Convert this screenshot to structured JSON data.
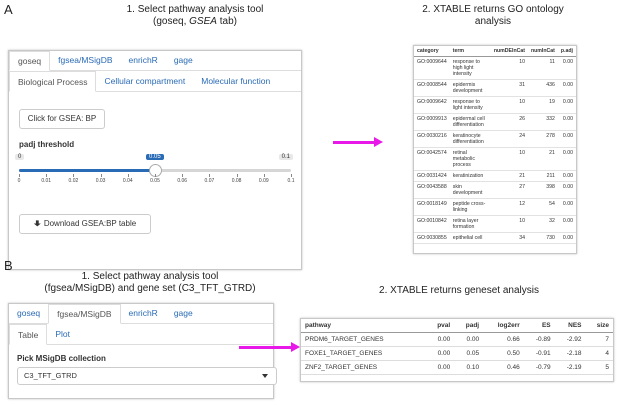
{
  "panel_a": {
    "letter": "A",
    "step1_line1": "1.  Select pathway analysis tool",
    "step1_line2_pre": "(goseq, ",
    "step1_line2_italic": "GSEA",
    "step1_line2_post": " tab)",
    "step2_line1": "2. XTABLE returns GO ontology",
    "step2_line2": "analysis",
    "tabs": [
      "goseq",
      "fgsea/MSigDB",
      "enrichR",
      "gage"
    ],
    "subtabs": [
      "Biological Process",
      "Cellular compartment",
      "Molecular function"
    ],
    "gsea_button": "Click for GSEA: BP",
    "slider_label": "padj threshold",
    "slider_min": "0",
    "slider_max": "0.1",
    "slider_value": "0.05",
    "slider_level": 0.5,
    "ticks": [
      "0",
      "0.01",
      "0.02",
      "0.03",
      "0.04",
      "0.05",
      "0.06",
      "0.07",
      "0.08",
      "0.09",
      "0.1"
    ],
    "download_button": "Download GSEA:BP table",
    "go_table": {
      "headers": [
        "category",
        "term",
        "numDEInCat",
        "numInCat",
        "p.adj"
      ],
      "rows": [
        [
          "GO:0009644",
          "response to high light intensity",
          "10",
          "11",
          "0.00"
        ],
        [
          "GO:0008544",
          "epidermis development",
          "31",
          "436",
          "0.00"
        ],
        [
          "GO:0009642",
          "response to light intensity",
          "10",
          "19",
          "0.00"
        ],
        [
          "GO:0009913",
          "epidermal cell differentiation",
          "26",
          "332",
          "0.00"
        ],
        [
          "GO:0030216",
          "keratinocyte differentiation",
          "24",
          "278",
          "0.00"
        ],
        [
          "GO:0042574",
          "retinal metabolic process",
          "10",
          "21",
          "0.00"
        ],
        [
          "GO:0031424",
          "keratinization",
          "21",
          "211",
          "0.00"
        ],
        [
          "GO:0043588",
          "skin development",
          "27",
          "398",
          "0.00"
        ],
        [
          "GO:0018149",
          "peptide cross-linking",
          "12",
          "54",
          "0.00"
        ],
        [
          "GO:0010842",
          "retina layer formation",
          "10",
          "32",
          "0.00"
        ],
        [
          "GO:0030855",
          "epithelial cell",
          "34",
          "730",
          "0.00"
        ]
      ]
    }
  },
  "panel_b": {
    "letter": "B",
    "step1_line1": "1.  Select pathway analysis tool",
    "step1_line2": "(fgsea/MSigDB) and gene set (C3_TFT_GTRD)",
    "step2": "2. XTABLE returns geneset analysis",
    "tabs": [
      "goseq",
      "fgsea/MSigDB",
      "enrichR",
      "gage"
    ],
    "subtabs": [
      "Table",
      "Plot"
    ],
    "select_label": "Pick MSigDB collection",
    "select_value": "C3_TFT_GTRD",
    "gs_table": {
      "headers": [
        "pathway",
        "pval",
        "padj",
        "log2err",
        "ES",
        "NES",
        "size"
      ],
      "rows": [
        [
          "PRDM6_TARGET_GENES",
          "0.00",
          "0.00",
          "0.66",
          "-0.89",
          "-2.92",
          "7"
        ],
        [
          "FOXE1_TARGET_GENES",
          "0.00",
          "0.05",
          "0.50",
          "-0.91",
          "-2.18",
          "4"
        ],
        [
          "ZNF2_TARGET_GENES",
          "0.00",
          "0.10",
          "0.46",
          "-0.79",
          "-2.19",
          "5"
        ]
      ]
    }
  },
  "colors": {
    "arrow": "#e818e8",
    "link": "#2a6bb6",
    "slider": "#2a6bb6"
  }
}
